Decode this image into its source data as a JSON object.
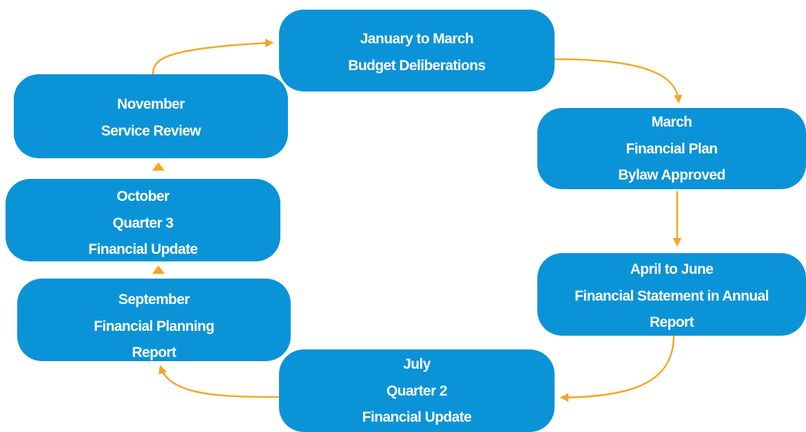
{
  "nodes": [
    {
      "lines": [
        "January to March",
        "Budget Deliberations"
      ]
    },
    {
      "lines": [
        "March",
        "Financial Plan",
        "Bylaw Approved"
      ]
    },
    {
      "lines": [
        "April to June",
        "Financial Statement in Annual",
        "Report"
      ]
    },
    {
      "lines": [
        "July",
        "Quarter 2",
        "Financial Update"
      ]
    },
    {
      "lines": [
        "September",
        "Financial Planning",
        "Report"
      ]
    },
    {
      "lines": [
        "October",
        "Quarter 3",
        "Financial Update"
      ]
    },
    {
      "lines": [
        "November",
        "Service Review"
      ]
    }
  ]
}
